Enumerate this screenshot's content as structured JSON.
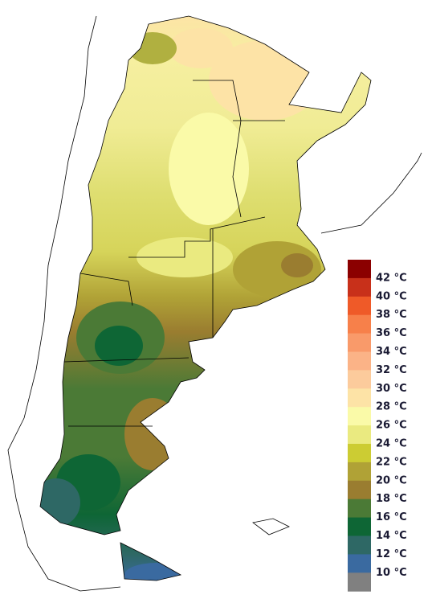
{
  "legend": {
    "labels": [
      "42 °C",
      "40 °C",
      "38 °C",
      "36 °C",
      "34 °C",
      "32 °C",
      "30 °C",
      "28 °C",
      "26 °C",
      "24 °C",
      "22 °C",
      "20 °C",
      "18 °C",
      "16 °C",
      "14 °C",
      "12 °C",
      "10 °C"
    ],
    "colors": [
      "#8b0000",
      "#c8301a",
      "#ef5a28",
      "#f7804a",
      "#f99a6a",
      "#fbb387",
      "#fccb9c",
      "#fde3a6",
      "#fafaa8",
      "#eaea80",
      "#cccc33",
      "#b0a236",
      "#9a7d30",
      "#4b7a36",
      "#0e6635",
      "#2e6865",
      "#3a6aa0",
      "#808080"
    ]
  }
}
